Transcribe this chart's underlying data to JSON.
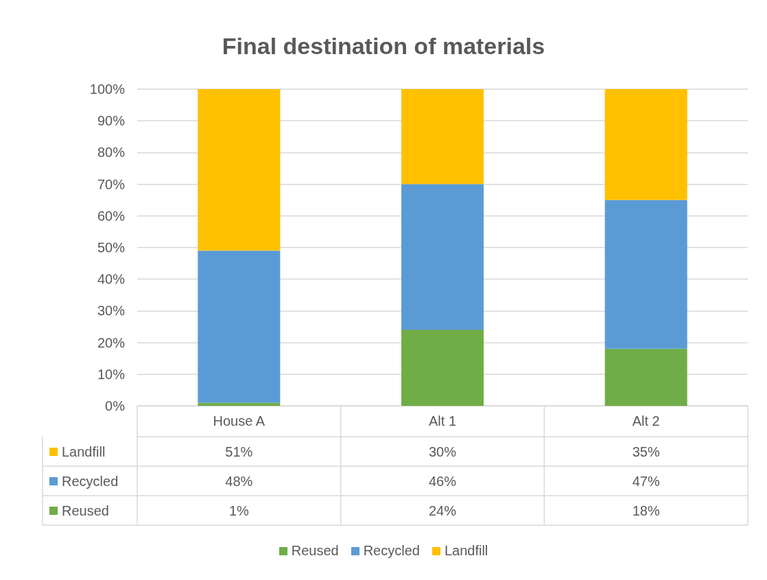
{
  "chart_data": {
    "type": "bar",
    "title": "Final destination of materials",
    "categories": [
      "House A",
      "Alt 1",
      "Alt 2"
    ],
    "stacked": true,
    "series": [
      {
        "name": "Reused",
        "color": "#70ad47",
        "values": [
          1,
          24,
          18
        ],
        "value_labels": [
          "1%",
          "24%",
          "18%"
        ]
      },
      {
        "name": "Recycled",
        "color": "#5b9bd5",
        "values": [
          48,
          46,
          47
        ],
        "value_labels": [
          "48%",
          "46%",
          "47%"
        ]
      },
      {
        "name": "Landfill",
        "color": "#ffc000",
        "values": [
          51,
          30,
          35
        ],
        "value_labels": [
          "51%",
          "30%",
          "35%"
        ]
      }
    ],
    "ylim": [
      0,
      100
    ],
    "yticks": [
      {
        "value": 0,
        "label": "0%"
      },
      {
        "value": 10,
        "label": "10%"
      },
      {
        "value": 20,
        "label": "20%"
      },
      {
        "value": 30,
        "label": "30%"
      },
      {
        "value": 40,
        "label": "40%"
      },
      {
        "value": 50,
        "label": "50%"
      },
      {
        "value": 60,
        "label": "60%"
      },
      {
        "value": 70,
        "label": "70%"
      },
      {
        "value": 80,
        "label": "80%"
      },
      {
        "value": 90,
        "label": "90%"
      },
      {
        "value": 100,
        "label": "100%"
      }
    ],
    "grid": "y",
    "legend": "bottom"
  }
}
